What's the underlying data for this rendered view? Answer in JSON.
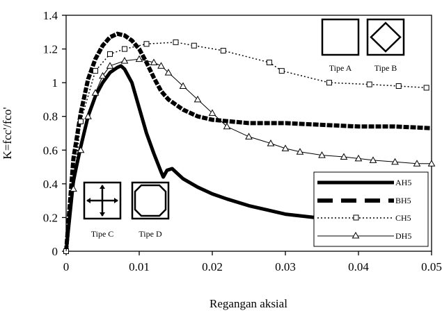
{
  "chart_data": {
    "type": "line",
    "title": "",
    "xlabel": "Regangan aksial",
    "ylabel": "K=fcc'/fco'",
    "xlim": [
      0,
      0.05
    ],
    "ylim": [
      0,
      1.4
    ],
    "xticks": [
      "0",
      "0.01",
      "0.02",
      "0.03",
      "0.04",
      "0.05"
    ],
    "yticks": [
      "0",
      "0.2",
      "0.4",
      "0.6",
      "0.8",
      "1",
      "1.2",
      "1.4"
    ],
    "grid": false,
    "legend_position": "bottom-right",
    "series": [
      {
        "name": "AH5",
        "style": "thick-solid",
        "x": [
          0,
          0.001,
          0.002,
          0.003,
          0.004,
          0.005,
          0.006,
          0.007,
          0.0075,
          0.008,
          0.009,
          0.01,
          0.011,
          0.012,
          0.013,
          0.0133,
          0.0138,
          0.0145,
          0.016,
          0.018,
          0.02,
          0.022,
          0.025,
          0.028,
          0.03,
          0.032,
          0.034,
          0.0365
        ],
        "y": [
          0,
          0.42,
          0.62,
          0.8,
          0.92,
          1.0,
          1.06,
          1.09,
          1.1,
          1.08,
          1.0,
          0.85,
          0.7,
          0.58,
          0.47,
          0.44,
          0.48,
          0.49,
          0.43,
          0.38,
          0.34,
          0.31,
          0.27,
          0.24,
          0.22,
          0.21,
          0.2,
          0.18
        ]
      },
      {
        "name": "BH5",
        "style": "thick-dashed",
        "x": [
          0,
          0.001,
          0.002,
          0.003,
          0.004,
          0.005,
          0.006,
          0.007,
          0.008,
          0.009,
          0.01,
          0.011,
          0.012,
          0.013,
          0.014,
          0.015,
          0.016,
          0.018,
          0.02,
          0.025,
          0.03,
          0.035,
          0.04,
          0.045,
          0.05
        ],
        "y": [
          0,
          0.55,
          0.82,
          1.02,
          1.14,
          1.22,
          1.27,
          1.29,
          1.28,
          1.25,
          1.2,
          1.12,
          1.03,
          0.95,
          0.9,
          0.87,
          0.84,
          0.8,
          0.78,
          0.76,
          0.76,
          0.75,
          0.74,
          0.74,
          0.73
        ]
      },
      {
        "name": "CH5",
        "style": "dotted-square-markers",
        "x": [
          0,
          0.002,
          0.004,
          0.006,
          0.008,
          0.011,
          0.015,
          0.0175,
          0.0215,
          0.0278,
          0.0295,
          0.036,
          0.0415,
          0.0455,
          0.0493
        ],
        "y": [
          0,
          0.77,
          1.07,
          1.17,
          1.2,
          1.23,
          1.24,
          1.22,
          1.19,
          1.12,
          1.07,
          1.0,
          0.99,
          0.98,
          0.97
        ]
      },
      {
        "name": "DH5",
        "style": "thin-solid-triangle-markers",
        "x": [
          0,
          0.001,
          0.002,
          0.003,
          0.004,
          0.005,
          0.006,
          0.008,
          0.01,
          0.012,
          0.013,
          0.014,
          0.016,
          0.018,
          0.02,
          0.022,
          0.025,
          0.028,
          0.03,
          0.032,
          0.035,
          0.038,
          0.04,
          0.042,
          0.045,
          0.048,
          0.05
        ],
        "y": [
          0,
          0.37,
          0.6,
          0.8,
          0.94,
          1.04,
          1.1,
          1.13,
          1.14,
          1.12,
          1.1,
          1.06,
          0.98,
          0.9,
          0.82,
          0.74,
          0.68,
          0.64,
          0.61,
          0.59,
          0.57,
          0.56,
          0.55,
          0.54,
          0.53,
          0.52,
          0.52
        ]
      }
    ],
    "type_labels": [
      "Tipe A",
      "Tipe B",
      "Tipe C",
      "Tipe D"
    ]
  }
}
